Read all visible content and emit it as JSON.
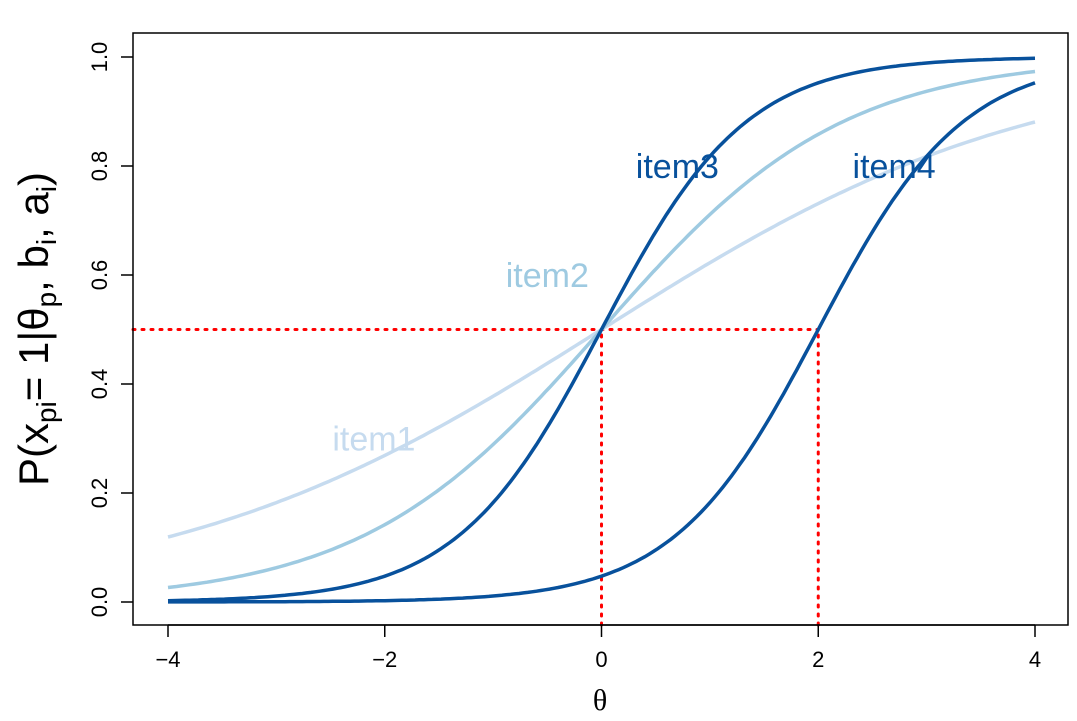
{
  "chart_data": {
    "type": "line",
    "title": "",
    "xlabel": "θ",
    "ylabel": {
      "main": "P(x",
      "sub1": "pi",
      "mid": "= 1|θ",
      "sub2": "p",
      "mid2": ", b",
      "sub3": "i",
      "mid3": ", a",
      "sub4": "i",
      "end": ")"
    },
    "xlim": [
      -4,
      4
    ],
    "ylim": [
      0,
      1
    ],
    "xticks": [
      -4,
      -2,
      0,
      2,
      4
    ],
    "xtick_labels": [
      "−4",
      "−2",
      "0",
      "2",
      "4"
    ],
    "yticks": [
      0,
      0.2,
      0.4,
      0.6,
      0.8,
      1.0
    ],
    "ytick_labels": [
      "0.0",
      "0.2",
      "0.4",
      "0.6",
      "0.8",
      "1.0"
    ],
    "grid": false,
    "model": "logistic P = 1/(1+exp(-a(θ-b)))",
    "series": [
      {
        "name": "item1",
        "a": 0.5,
        "b": 0,
        "color": "#c6dbef",
        "label_at": [
          -2.1,
          0.3
        ]
      },
      {
        "name": "item2",
        "a": 0.9,
        "b": 0,
        "color": "#9ecae1",
        "label_at": [
          -0.5,
          0.6
        ]
      },
      {
        "name": "item3",
        "a": 1.5,
        "b": 0,
        "color": "#08519c",
        "label_at": [
          0.7,
          0.8
        ]
      },
      {
        "name": "item4",
        "a": 1.5,
        "b": 2,
        "color": "#08519c",
        "label_at": [
          2.7,
          0.8
        ]
      }
    ],
    "reference_lines": {
      "color": "#ff0000",
      "y": 0.5,
      "x": [
        0,
        2
      ]
    }
  }
}
